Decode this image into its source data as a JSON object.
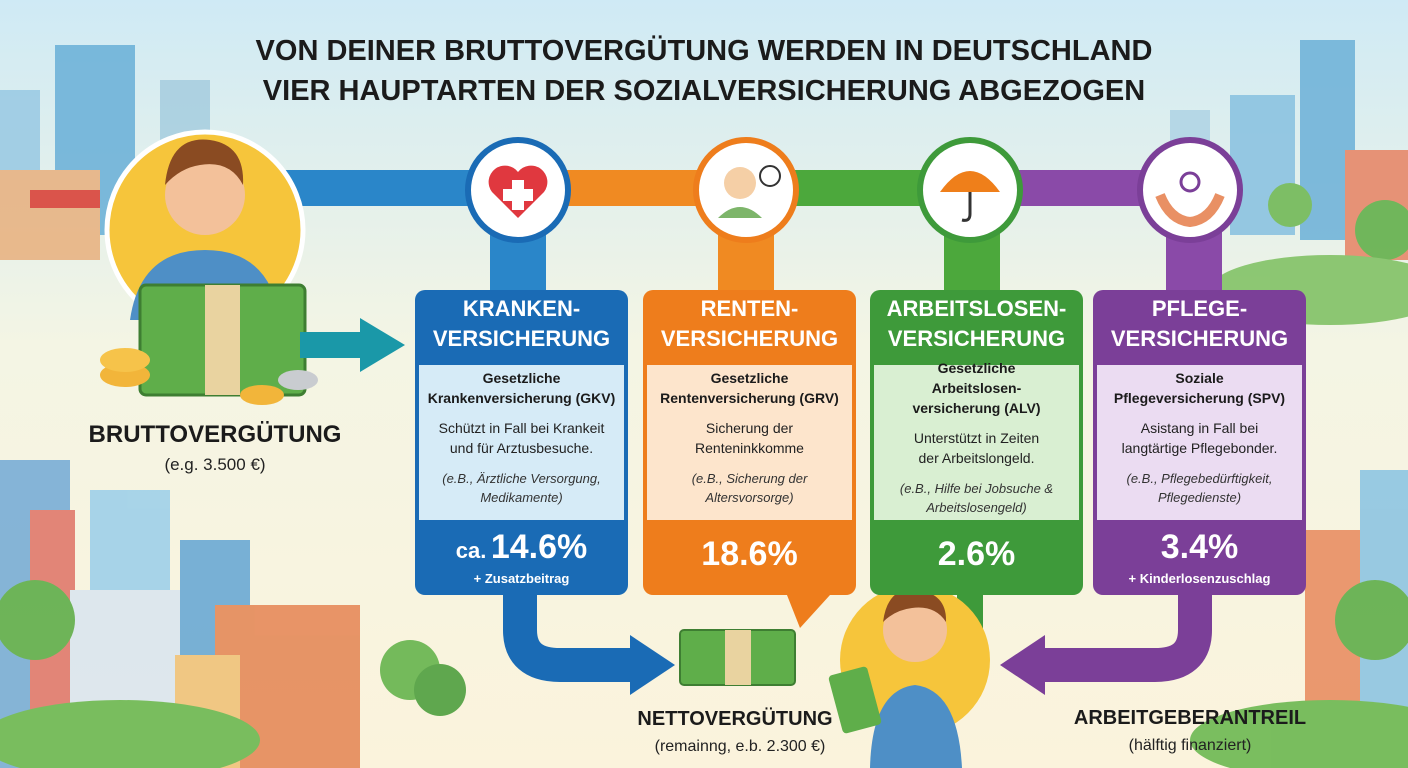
{
  "header": {
    "title_lines": [
      "VON DEINER BRUTTOVERGÜTUNG WERDEN IN DEUTSCHLAND",
      "VIER HAUPTARTEN DER SOZIALVERSICHERUNG ABGEZOGEN"
    ]
  },
  "gross": {
    "label": "BRUTTOVERGÜTUNG",
    "example": "(e.g. 3.500 €)"
  },
  "cards": [
    {
      "header_lines": [
        "KRANKEN-",
        "VERSICHERUNG"
      ],
      "name_lines": [
        "Gesetzliche",
        "Krankenversicherung (GKV)"
      ],
      "description_lines": [
        "Schützt in Fall bei Krankeit",
        "und für Arztusbesuche."
      ],
      "example_lines": [
        "(e.B., Ärztliche Versorgung,",
        "Medikamente)"
      ],
      "rate_prefix": "ca.",
      "rate": "14.6%",
      "note": "+ Zusatzbeitrag"
    },
    {
      "header_lines": [
        "RENTEN-",
        "VERSICHERUNG"
      ],
      "name_lines": [
        "Gesetzliche",
        "Rentenversicherung (GRV)"
      ],
      "description_lines": [
        "Sicherung der",
        "Renteninkkomme"
      ],
      "example_lines": [
        "(e.B., Sicherung der",
        "Altersvorsorge)"
      ],
      "rate": "18.6%"
    },
    {
      "header_lines": [
        "ARBEITSLOSEN-",
        "VERSICHERUNG"
      ],
      "name_lines": [
        "Gesetzliche",
        "Arbeitslosen-",
        "versicherung (ALV)"
      ],
      "description_lines": [
        "Unterstützt in Zeiten",
        "der Arbeitslongeld."
      ],
      "example_lines": [
        "(e.B., Hilfe bei Jobsuche &",
        "Arbeitslosengeld)"
      ],
      "rate": "2.6%"
    },
    {
      "header_lines": [
        "PFLEGE-",
        "VERSICHERUNG"
      ],
      "name_lines": [
        "Soziale",
        "Pflegeversicherung (SPV)"
      ],
      "description_lines": [
        "Asistang in Fall bei",
        "langtärtige Pflegebonder."
      ],
      "example_lines": [
        "(e.B., Pflegebedürftigkeit,",
        "Pflegedienste)"
      ],
      "rate": "3.4%",
      "note": "+ Kinderlosenzuschlag"
    }
  ],
  "net": {
    "label": "NETTOVERGÜTUNG",
    "example": "(remainng, e.b. 2.300 €)"
  },
  "employer": {
    "label": "ARBEITGEBERANTREIL",
    "example": "(hälftig finanziert)"
  }
}
